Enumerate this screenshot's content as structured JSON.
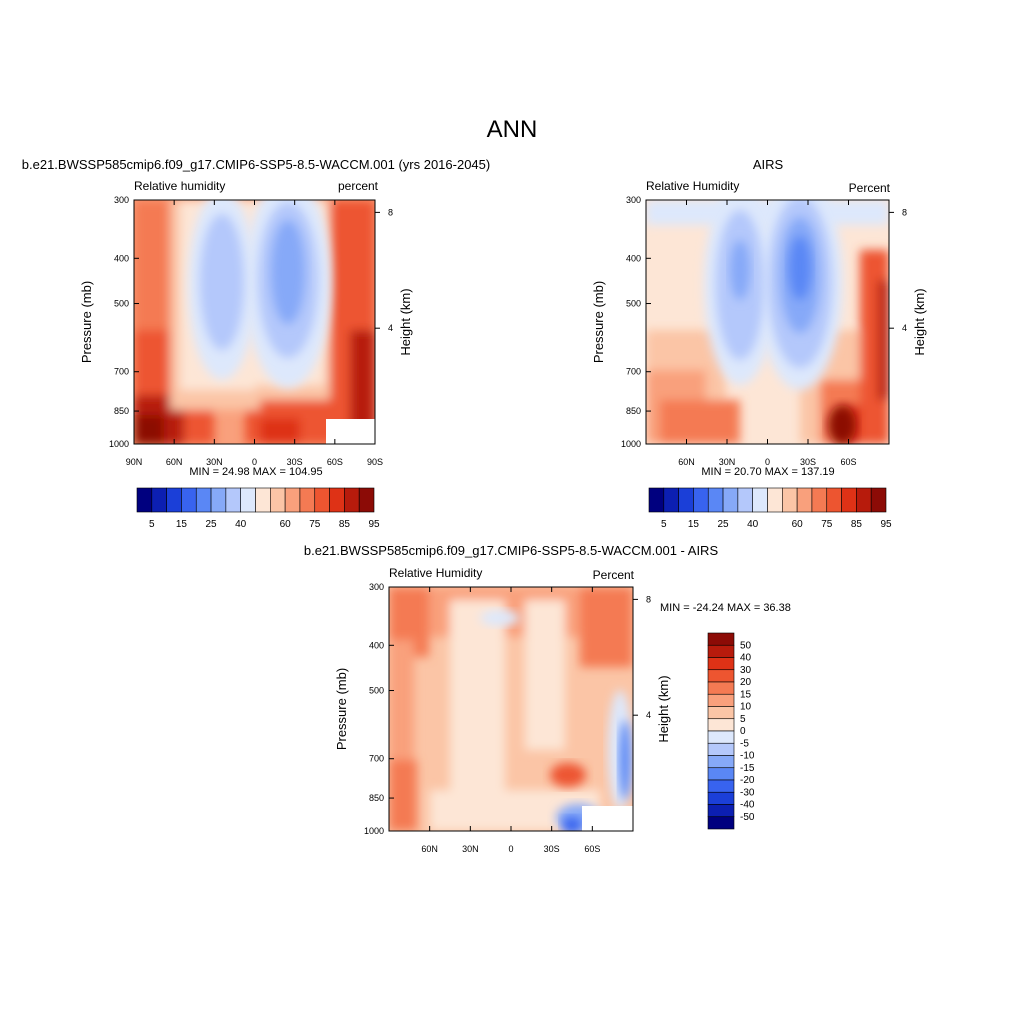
{
  "main_title": "ANN",
  "colors": {
    "frame": "#000000",
    "scale": [
      "#00007f",
      "#0c1fb2",
      "#1b3fd8",
      "#3863ef",
      "#5a87f5",
      "#86a9f8",
      "#b4c8fb",
      "#dde8fc",
      "#fde6d6",
      "#fbc5a6",
      "#f9a07c",
      "#f47a53",
      "#ed5530",
      "#de3216",
      "#b71b0c",
      "#8c0b06"
    ]
  },
  "panel_model": {
    "top_title": "b.e21.BWSSP585cmip6.f09_g17.CMIP6-SSP5-8.5-WACCM.001 (yrs 2016-2045)",
    "left_label": "Relative humidity",
    "right_label": "percent",
    "stats": "MIN =  24.98  MAX = 104.95"
  },
  "panel_obs": {
    "top_title": "AIRS",
    "left_label": "Relative Humidity",
    "right_label": "Percent",
    "stats": "MIN =  20.70  MAX = 137.19"
  },
  "panel_diff": {
    "top_title": "b.e21.BWSSP585cmip6.f09_g17.CMIP6-SSP5-8.5-WACCM.001 - AIRS",
    "left_label": "Relative Humidity",
    "right_label": "Percent",
    "stats": "MIN = -24.24  MAX =  36.38"
  },
  "chart_data": [
    {
      "type": "heatmap",
      "title": "b.e21.BWSSP585cmip6.f09_g17.CMIP6-SSP5-8.5-WACCM.001 (yrs 2016-2045)",
      "variable": "Relative humidity",
      "units": "percent",
      "xlabel": "",
      "ylabel": "Pressure (mb)",
      "y2label": "Height (km)",
      "x_ticks": [
        "90N",
        "60N",
        "30N",
        "0",
        "30S",
        "60S",
        "90S"
      ],
      "y_ticks": [
        "300",
        "400",
        "500",
        "700",
        "850",
        "1000"
      ],
      "y2_ticks": [
        "8",
        "4"
      ],
      "min": 24.98,
      "max": 104.95,
      "colorbar_ticks": [
        "5",
        "15",
        "25",
        "40",
        "60",
        "75",
        "85",
        "95"
      ],
      "grid": false
    },
    {
      "type": "heatmap",
      "title": "AIRS",
      "variable": "Relative Humidity",
      "units": "Percent",
      "xlabel": "",
      "ylabel": "Pressure (mb)",
      "y2label": "Height (km)",
      "x_ticks": [
        "60N",
        "30N",
        "0",
        "30S",
        "60S"
      ],
      "y_ticks": [
        "300",
        "400",
        "500",
        "700",
        "850",
        "1000"
      ],
      "y2_ticks": [
        "8",
        "4"
      ],
      "min": 20.7,
      "max": 137.19,
      "colorbar_ticks": [
        "5",
        "15",
        "25",
        "40",
        "60",
        "75",
        "85",
        "95"
      ],
      "grid": false
    },
    {
      "type": "heatmap",
      "title": "b.e21.BWSSP585cmip6.f09_g17.CMIP6-SSP5-8.5-WACCM.001 - AIRS",
      "variable": "Relative Humidity",
      "units": "Percent",
      "xlabel": "",
      "ylabel": "Pressure (mb)",
      "y2label": "Height (km)",
      "x_ticks": [
        "60N",
        "30N",
        "0",
        "30S",
        "60S"
      ],
      "y_ticks": [
        "300",
        "400",
        "500",
        "700",
        "850",
        "1000"
      ],
      "y2_ticks": [
        "8",
        "4"
      ],
      "min": -24.24,
      "max": 36.38,
      "colorbar_ticks": [
        "50",
        "40",
        "30",
        "20",
        "15",
        "10",
        "5",
        "0",
        "-5",
        "-10",
        "-15",
        "-20",
        "-30",
        "-40",
        "-50"
      ],
      "grid": false
    }
  ]
}
